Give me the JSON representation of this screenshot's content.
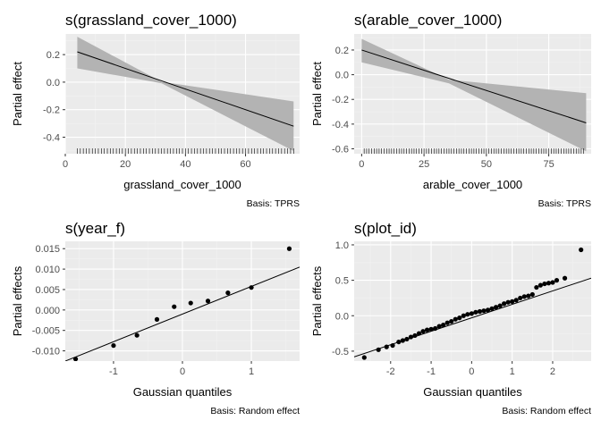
{
  "chart_data": [
    {
      "type": "line",
      "title": "s(grassland_cover_1000)",
      "xlabel": "grassland_cover_1000",
      "ylabel": "Partial effect",
      "caption": "Basis: TPRS",
      "xlim": [
        0,
        78
      ],
      "ylim": [
        -0.52,
        0.35
      ],
      "xticks": [
        0,
        20,
        40,
        60
      ],
      "yticks": [
        -0.4,
        -0.2,
        0.0,
        0.2
      ],
      "ytick_labels": [
        "-0.4",
        "-0.2",
        "0.0",
        "0.2"
      ],
      "grid": true,
      "series": [
        {
          "role": "fit",
          "x": [
            4,
            76
          ],
          "y": [
            0.22,
            -0.32
          ]
        },
        {
          "role": "ci_upper",
          "x": [
            4,
            32,
            76
          ],
          "y": [
            0.33,
            0.003,
            -0.14
          ]
        },
        {
          "role": "ci_lower",
          "x": [
            4,
            32,
            76
          ],
          "y": [
            0.1,
            -0.008,
            -0.5
          ]
        }
      ],
      "rug": [
        4,
        5,
        6,
        7,
        8,
        9,
        10,
        11,
        12,
        13,
        14,
        15,
        16,
        17,
        18,
        19,
        20,
        21,
        22,
        23,
        24,
        25,
        26,
        27,
        28,
        29,
        30,
        31,
        32,
        33,
        34,
        35,
        36,
        37,
        38,
        39,
        40,
        41,
        42,
        43,
        44,
        45,
        46,
        47,
        48,
        49,
        50,
        51,
        52,
        53,
        54,
        55,
        56,
        57,
        58,
        59,
        60,
        61,
        62,
        63,
        64,
        65,
        66,
        67,
        68,
        69,
        70,
        71,
        72,
        73,
        74,
        75,
        76
      ]
    },
    {
      "type": "line",
      "title": "s(arable_cover_1000)",
      "xlabel": "arable_cover_1000",
      "ylabel": "Partial effect",
      "caption": "Basis: TPRS",
      "xlim": [
        -3,
        92
      ],
      "ylim": [
        -0.64,
        0.33
      ],
      "xticks": [
        0,
        25,
        50,
        75
      ],
      "yticks": [
        -0.6,
        -0.4,
        -0.2,
        0.0,
        0.2
      ],
      "ytick_labels": [
        "-0.6",
        "-0.4",
        "-0.2",
        "0.0",
        "0.2"
      ],
      "grid": true,
      "series": [
        {
          "role": "fit",
          "x": [
            0,
            90
          ],
          "y": [
            0.2,
            -0.39
          ]
        },
        {
          "role": "ci_upper",
          "x": [
            0,
            35,
            90
          ],
          "y": [
            0.29,
            -0.04,
            -0.15
          ]
        },
        {
          "role": "ci_lower",
          "x": [
            0,
            35,
            90
          ],
          "y": [
            0.1,
            -0.07,
            -0.62
          ]
        }
      ],
      "rug": [
        1,
        2,
        3,
        4,
        5,
        6,
        7,
        8,
        9,
        10,
        11,
        12,
        13,
        14,
        15,
        16,
        17,
        18,
        19,
        20,
        21,
        22,
        23,
        24,
        25,
        26,
        27,
        28,
        29,
        30,
        31,
        32,
        33,
        34,
        35,
        36,
        37,
        38,
        39,
        40,
        41,
        42,
        43,
        44,
        45,
        46,
        47,
        48,
        49,
        50,
        51,
        52,
        53,
        54,
        55,
        56,
        57,
        58,
        59,
        60,
        61,
        62,
        63,
        64,
        65,
        66,
        67,
        68,
        69,
        70,
        71,
        72,
        73,
        74,
        75,
        76,
        77,
        78,
        79,
        80,
        81,
        82,
        83,
        84,
        85,
        86,
        87,
        88,
        89
      ]
    },
    {
      "type": "scatter",
      "title": "s(year_f)",
      "xlabel": "Gaussian quantiles",
      "ylabel": "Partial effects",
      "caption": "Basis: Random effect",
      "xlim": [
        -1.7,
        1.7
      ],
      "ylim": [
        -0.0125,
        0.0168
      ],
      "xticks": [
        -1,
        0,
        1
      ],
      "yticks": [
        -0.01,
        -0.005,
        0.0,
        0.005,
        0.01,
        0.015
      ],
      "ytick_labels": [
        "-0.010",
        "-0.005",
        "0.000",
        "0.005",
        "0.010",
        "0.015"
      ],
      "grid": true,
      "x": [
        -1.55,
        -1.0,
        -0.66,
        -0.37,
        -0.12,
        0.12,
        0.37,
        0.66,
        1.0,
        1.55
      ],
      "y": [
        -0.012,
        -0.0087,
        -0.0062,
        -0.0023,
        0.0008,
        0.0017,
        0.0022,
        0.0042,
        0.0055,
        0.015
      ],
      "reference_line": {
        "x": [
          -1.7,
          1.7
        ],
        "y": [
          -0.0125,
          0.0105
        ]
      }
    },
    {
      "type": "scatter",
      "title": "s(plot_id)",
      "xlabel": "Gaussian quantiles",
      "ylabel": "Partial effects",
      "caption": "Basis: Random effect",
      "xlim": [
        -2.9,
        2.95
      ],
      "ylim": [
        -0.64,
        1.05
      ],
      "xticks": [
        -2,
        -1,
        0,
        1,
        2
      ],
      "yticks": [
        -0.5,
        0.0,
        0.5,
        1.0
      ],
      "ytick_labels": [
        "-0.5",
        "0.0",
        "0.5",
        "1.0"
      ],
      "grid": true,
      "x": [
        -2.65,
        -2.3,
        -2.1,
        -1.95,
        -1.8,
        -1.7,
        -1.6,
        -1.5,
        -1.4,
        -1.3,
        -1.2,
        -1.1,
        -1.0,
        -0.9,
        -0.8,
        -0.7,
        -0.6,
        -0.5,
        -0.4,
        -0.3,
        -0.2,
        -0.1,
        0.0,
        0.1,
        0.2,
        0.3,
        0.4,
        0.5,
        0.6,
        0.7,
        0.8,
        0.9,
        1.0,
        1.1,
        1.2,
        1.3,
        1.4,
        1.5,
        1.6,
        1.7,
        1.8,
        1.9,
        2.0,
        2.1,
        2.3,
        2.7
      ],
      "y": [
        -0.59,
        -0.48,
        -0.44,
        -0.42,
        -0.37,
        -0.35,
        -0.33,
        -0.3,
        -0.28,
        -0.25,
        -0.22,
        -0.2,
        -0.19,
        -0.18,
        -0.15,
        -0.13,
        -0.1,
        -0.08,
        -0.05,
        -0.03,
        0.0,
        0.02,
        0.03,
        0.05,
        0.06,
        0.07,
        0.08,
        0.1,
        0.12,
        0.14,
        0.17,
        0.19,
        0.2,
        0.22,
        0.25,
        0.27,
        0.28,
        0.3,
        0.4,
        0.43,
        0.45,
        0.46,
        0.47,
        0.5,
        0.53,
        0.93
      ],
      "reference_line": {
        "x": [
          -2.9,
          2.95
        ],
        "y": [
          -0.58,
          0.53
        ]
      }
    }
  ],
  "colors": {
    "panel_bg": "#ebebeb",
    "grid_major": "#ffffff",
    "grid_minor": "#f2f2f2",
    "ribbon": "#b3b3b3",
    "line": "#000000",
    "point": "#000000",
    "tick_label": "#4d4d4d"
  }
}
